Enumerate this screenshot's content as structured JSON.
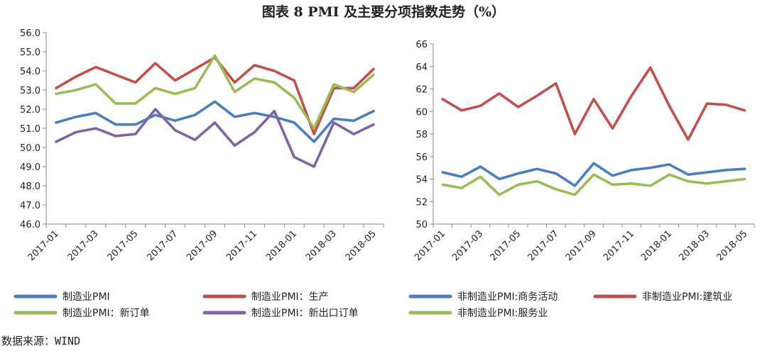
{
  "title": "图表 8   PMI 及主要分项指数走势（%）",
  "source": "数据来源：WIND",
  "chart_data": [
    {
      "type": "line",
      "title": "",
      "xlabel": "",
      "ylabel": "",
      "ylim": [
        46.0,
        56.0
      ],
      "yticks": [
        "56.0",
        "55.0",
        "54.0",
        "53.0",
        "52.0",
        "51.0",
        "50.0",
        "49.0",
        "48.0",
        "47.0",
        "46.0"
      ],
      "x": [
        "2017-01",
        "2017-02",
        "2017-03",
        "2017-04",
        "2017-05",
        "2017-06",
        "2017-07",
        "2017-08",
        "2017-09",
        "2017-10",
        "2017-11",
        "2017-12",
        "2018-01",
        "2018-02",
        "2018-03",
        "2018-04",
        "2018-05"
      ],
      "xtick_labels": [
        "2017-01",
        "2017-03",
        "2017-05",
        "2017-07",
        "2017-09",
        "2017-11",
        "2018-01",
        "2018-03",
        "2018-05"
      ],
      "grid": false,
      "legend_position": "bottom",
      "series": [
        {
          "name": "制造业PMI",
          "color": "#4a7ebf",
          "values": [
            51.3,
            51.6,
            51.8,
            51.2,
            51.2,
            51.7,
            51.4,
            51.7,
            52.4,
            51.6,
            51.8,
            51.6,
            51.3,
            50.3,
            51.5,
            51.4,
            51.9
          ]
        },
        {
          "name": "制造业PMI：生产",
          "color": "#c0504d",
          "values": [
            53.1,
            53.7,
            54.2,
            53.8,
            53.4,
            54.4,
            53.5,
            54.1,
            54.7,
            53.4,
            54.3,
            54.0,
            53.5,
            50.7,
            53.1,
            53.1,
            54.1
          ]
        },
        {
          "name": "制造业PMI：新订单",
          "color": "#9bbb59",
          "values": [
            52.8,
            53.0,
            53.3,
            52.3,
            52.3,
            53.1,
            52.8,
            53.1,
            54.8,
            52.9,
            53.6,
            53.4,
            52.6,
            51.0,
            53.3,
            52.9,
            53.8
          ]
        },
        {
          "name": "制造业PMI：新出口订单",
          "color": "#8064a2",
          "values": [
            50.3,
            50.8,
            51.0,
            50.6,
            50.7,
            52.0,
            50.9,
            50.4,
            51.3,
            50.1,
            50.8,
            51.9,
            49.5,
            49.0,
            51.3,
            50.7,
            51.2
          ]
        }
      ]
    },
    {
      "type": "line",
      "title": "",
      "xlabel": "",
      "ylabel": "",
      "ylim": [
        50,
        66
      ],
      "yticks": [
        "66",
        "64",
        "62",
        "60",
        "58",
        "56",
        "54",
        "52",
        "50"
      ],
      "x": [
        "2017-01",
        "2017-02",
        "2017-03",
        "2017-04",
        "2017-05",
        "2017-06",
        "2017-07",
        "2017-08",
        "2017-09",
        "2017-10",
        "2017-11",
        "2017-12",
        "2018-01",
        "2018-02",
        "2018-03",
        "2018-04",
        "2018-05"
      ],
      "xtick_labels": [
        "2017-01",
        "2017-03",
        "2017-05",
        "2017-07",
        "2017-09",
        "2017-11",
        "2018-01",
        "2018-03",
        "2018-05"
      ],
      "grid": false,
      "legend_position": "bottom",
      "series": [
        {
          "name": "非制造业PMI:商务活动",
          "color": "#4a7ebf",
          "values": [
            54.6,
            54.2,
            55.1,
            54.0,
            54.5,
            54.9,
            54.5,
            53.4,
            55.4,
            54.3,
            54.8,
            55.0,
            55.3,
            54.4,
            54.6,
            54.8,
            54.9
          ]
        },
        {
          "name": "非制造业PMI:建筑业",
          "color": "#c0504d",
          "values": [
            61.1,
            60.1,
            60.5,
            61.6,
            60.4,
            61.4,
            62.5,
            58.0,
            61.1,
            58.5,
            61.4,
            63.9,
            60.5,
            57.5,
            60.7,
            60.6,
            60.1
          ]
        },
        {
          "name": "非制造业PMI:服务业",
          "color": "#9bbb59",
          "values": [
            53.5,
            53.2,
            54.2,
            52.6,
            53.5,
            53.8,
            53.1,
            52.6,
            54.4,
            53.5,
            53.6,
            53.4,
            54.4,
            53.8,
            53.6,
            53.8,
            54.0
          ]
        }
      ]
    }
  ]
}
